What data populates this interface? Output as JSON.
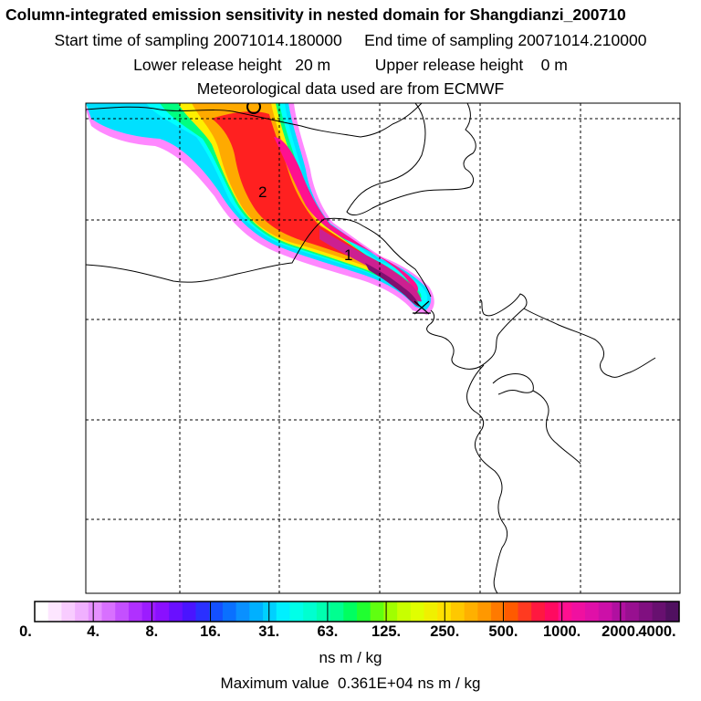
{
  "header": {
    "title": "Column-integrated emission sensitivity in nested domain for Shangdianzi_200710",
    "start_label": "Start time of sampling 20071014.180000",
    "end_label": "End time of sampling 20071014.210000",
    "lower_label": "Lower release height   20 m",
    "upper_label": "Upper release height    0 m",
    "met_label": "Meteorological data used are from ECMWF"
  },
  "map": {
    "markers": [
      {
        "id": "marker-1",
        "text": "1"
      },
      {
        "id": "marker-2",
        "text": "2"
      }
    ],
    "plume_colors": {
      "outer": "#ff88ff",
      "light": "#00e0ff",
      "cyan": "#00ffff",
      "green": "#00ff80",
      "yellow": "#ffee00",
      "orange": "#ffaa00",
      "red": "#ff2020",
      "pink": "#ff1090",
      "magenta": "#cc2090",
      "purple": "#801070"
    }
  },
  "colorbar": {
    "labels": [
      "0.",
      "4.",
      "8.",
      "16.",
      "31.",
      "63.",
      "125.",
      "250.",
      "500.",
      "1000.",
      "2000.",
      "4000."
    ],
    "units": "ns m / kg",
    "colors": [
      "#ffffff",
      "#fde6ff",
      "#f8ccff",
      "#f0b0ff",
      "#e690ff",
      "#d870ff",
      "#c450ff",
      "#b030ff",
      "#9c1cff",
      "#8a10ff",
      "#6a10ff",
      "#4a14ff",
      "#2a30ff",
      "#1450ff",
      "#0a70ff",
      "#0a90ff",
      "#00b0ff",
      "#00d0ff",
      "#00f0ff",
      "#00ffe8",
      "#00ffd0",
      "#00ffb0",
      "#00ff90",
      "#00ff60",
      "#20ff30",
      "#60ff10",
      "#a0ff00",
      "#c8ff00",
      "#e0ff00",
      "#f0f000",
      "#ffe000",
      "#ffc800",
      "#ffb000",
      "#ff9800",
      "#ff7a00",
      "#ff5a00",
      "#ff3a20",
      "#ff1840",
      "#ff0a60",
      "#ff1090",
      "#f010a0",
      "#e010a8",
      "#cc10a8",
      "#b010a0",
      "#981090",
      "#801080",
      "#681070",
      "#501060"
    ]
  },
  "footer": {
    "max_value_label": "Maximum value  0.361E+04 ns m / kg"
  }
}
